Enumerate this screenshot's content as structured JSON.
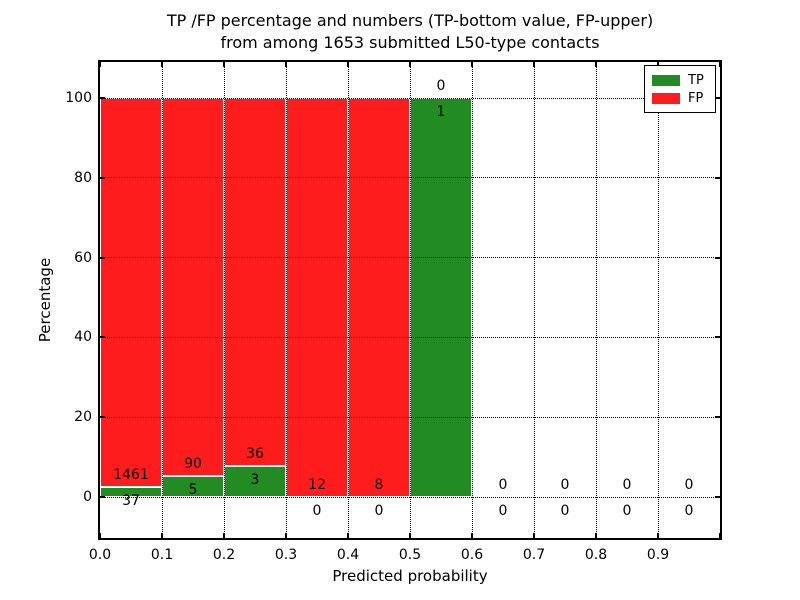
{
  "title": {
    "line1": "TP /FP percentage and numbers (TP-bottom value, FP-upper)",
    "line2": "from among 1653 submitted L50-type contacts"
  },
  "axes": {
    "xlabel": "Predicted probability",
    "ylabel": "Percentage",
    "x_tick_labels": [
      "0.0",
      "0.1",
      "0.2",
      "0.3",
      "0.4",
      "0.5",
      "0.6",
      "0.7",
      "0.8",
      "0.9"
    ],
    "y_tick_labels": [
      "0",
      "20",
      "40",
      "60",
      "80",
      "100"
    ],
    "y_tick_values": [
      0,
      20,
      40,
      60,
      80,
      100
    ]
  },
  "legend": {
    "items": [
      {
        "label": "TP",
        "color": "#228B22"
      },
      {
        "label": "FP",
        "color": "#FF1C1C"
      }
    ],
    "position": "upper right"
  },
  "chart_data": {
    "type": "bar",
    "stacked": true,
    "title": "TP /FP percentage and numbers (TP-bottom value, FP-upper) from among 1653 submitted L50-type contacts",
    "xlabel": "Predicted probability",
    "ylabel": "Percentage",
    "xlim": [
      0.0,
      1.0
    ],
    "ylim": [
      -10,
      109
    ],
    "grid": "dotted",
    "bin_width": 0.1,
    "total_contacts": 1653,
    "categories": [
      "0.0-0.1",
      "0.1-0.2",
      "0.2-0.3",
      "0.3-0.4",
      "0.4-0.5",
      "0.5-0.6",
      "0.6-0.7",
      "0.7-0.8",
      "0.8-0.9",
      "0.9-1.0"
    ],
    "bin_left_edges": [
      0.0,
      0.1,
      0.2,
      0.3,
      0.4,
      0.5,
      0.6,
      0.7,
      0.8,
      0.9
    ],
    "series": [
      {
        "name": "TP",
        "color": "#228B22",
        "counts": [
          37,
          5,
          3,
          0,
          0,
          1,
          0,
          0,
          0,
          0
        ],
        "percent": [
          2.47,
          5.26,
          7.69,
          0,
          0,
          100,
          0,
          0,
          0,
          0
        ]
      },
      {
        "name": "FP",
        "color": "#FF1C1C",
        "counts": [
          1461,
          90,
          36,
          12,
          8,
          0,
          0,
          0,
          0,
          0
        ],
        "percent": [
          97.53,
          94.74,
          92.31,
          100,
          100,
          0,
          0,
          0,
          0,
          0
        ]
      }
    ]
  }
}
